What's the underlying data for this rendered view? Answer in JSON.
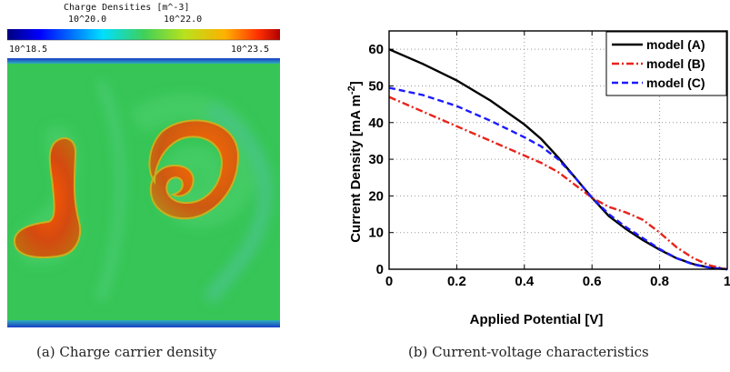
{
  "panel_a": {
    "colorbar_title": "Charge Densities [m^-3]",
    "colorbar_ticks_top": [
      "10^20.0",
      "10^22.0"
    ],
    "colorbar_ticks_bottom": [
      "10^18.5",
      "10^23.5"
    ],
    "colors": {
      "low": "#0000ff",
      "mid": "#2fbf3a",
      "high": "#ff2a00"
    },
    "caption": "(a) Charge carrier density"
  },
  "panel_b": {
    "caption": "(b) Current-voltage characteristics"
  },
  "chart_data": {
    "type": "line",
    "title": "",
    "xlabel": "Applied Potential [V]",
    "ylabel": "Current Density [mA m^-2]",
    "xlim": [
      0,
      1
    ],
    "ylim": [
      0,
      65
    ],
    "xticks": [
      0,
      0.2,
      0.4,
      0.6,
      0.8,
      1
    ],
    "xtick_labels": [
      "0",
      "0.2",
      "0.4",
      "0.6",
      "0.8",
      "1"
    ],
    "yticks": [
      0,
      10,
      20,
      30,
      40,
      50,
      60
    ],
    "ytick_labels": [
      "0",
      "10",
      "20",
      "30",
      "40",
      "50",
      "60"
    ],
    "grid": true,
    "legend_position": "top-right",
    "series": [
      {
        "name": "model (A)",
        "color": "#000000",
        "dash": "solid",
        "x": [
          0,
          0.1,
          0.2,
          0.3,
          0.4,
          0.45,
          0.5,
          0.55,
          0.6,
          0.65,
          0.7,
          0.75,
          0.8,
          0.85,
          0.9,
          0.95,
          1.0
        ],
        "y": [
          60,
          56,
          51.5,
          46,
          39.5,
          35.5,
          30.5,
          25,
          19.5,
          14.5,
          11,
          8,
          5.3,
          3,
          1.4,
          0.4,
          0
        ]
      },
      {
        "name": "model (B)",
        "color": "#e8231b",
        "dash": "dashdot",
        "x": [
          0,
          0.1,
          0.2,
          0.3,
          0.4,
          0.45,
          0.5,
          0.55,
          0.6,
          0.65,
          0.7,
          0.75,
          0.8,
          0.85,
          0.9,
          0.95,
          1.0
        ],
        "y": [
          47,
          43,
          39,
          35,
          31,
          29,
          26.5,
          23,
          19.5,
          17,
          15.5,
          13.5,
          10,
          6,
          3,
          1,
          0
        ]
      },
      {
        "name": "model (C)",
        "color": "#1a1aff",
        "dash": "dashed",
        "x": [
          0,
          0.1,
          0.2,
          0.3,
          0.4,
          0.45,
          0.5,
          0.55,
          0.6,
          0.65,
          0.7,
          0.75,
          0.8,
          0.85,
          0.9,
          0.95,
          1.0
        ],
        "y": [
          49.5,
          47.5,
          44.5,
          40.5,
          36,
          33.5,
          30,
          25,
          19.5,
          15,
          11.5,
          8.5,
          5.5,
          3,
          1.3,
          0.4,
          0
        ]
      }
    ]
  }
}
